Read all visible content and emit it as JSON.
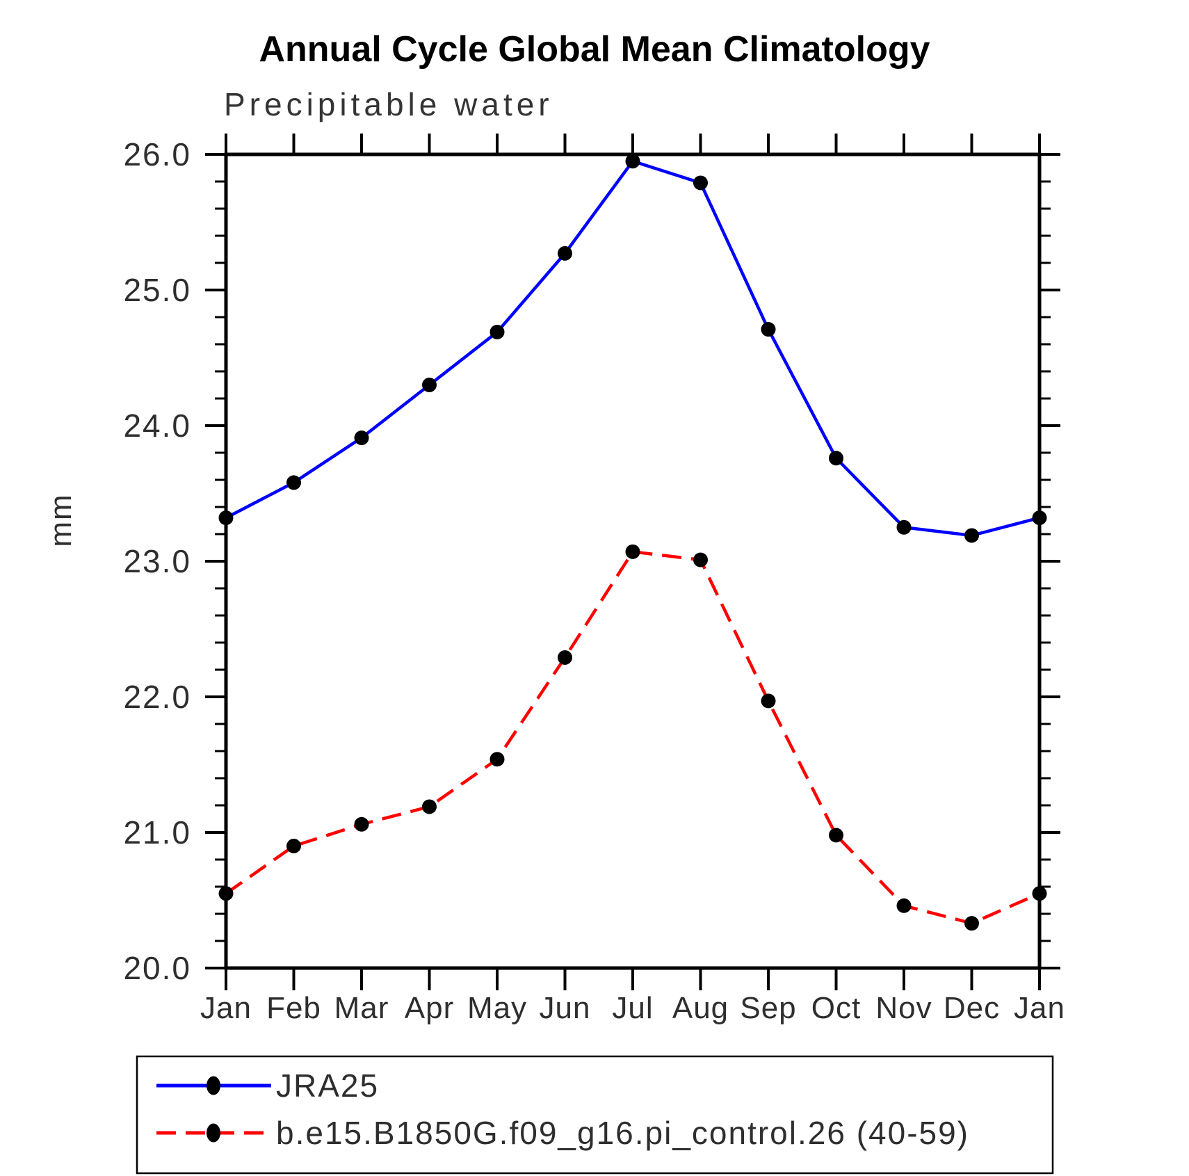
{
  "chart_data": {
    "type": "line",
    "title": "Annual Cycle Global Mean Climatology",
    "subtitle": "Precipitable water",
    "ylabel": "mm",
    "xlabel": "",
    "categories": [
      "Jan",
      "Feb",
      "Mar",
      "Apr",
      "May",
      "Jun",
      "Jul",
      "Aug",
      "Sep",
      "Oct",
      "Nov",
      "Dec",
      "Jan"
    ],
    "ylim": [
      20.0,
      26.0
    ],
    "ytick_step": 1.0,
    "yminor_step": 0.2,
    "ytick_labels": [
      "20.0",
      "21.0",
      "22.0",
      "23.0",
      "24.0",
      "25.0",
      "26.0"
    ],
    "grid": false,
    "legend_position": "bottom-left",
    "axis_color": "#000000",
    "marker_color": "#000000",
    "series": [
      {
        "name": "JRA25",
        "color": "#0000ff",
        "line_style": "solid",
        "marker": "circle",
        "values": [
          23.32,
          23.58,
          23.91,
          24.3,
          24.69,
          25.27,
          25.95,
          25.79,
          24.71,
          23.76,
          23.25,
          23.19,
          23.32
        ]
      },
      {
        "name": "b.e15.B1850G.f09_g16.pi_control.26 (40-59)",
        "color": "#ff0000",
        "line_style": "dashed",
        "marker": "circle",
        "values": [
          20.55,
          20.9,
          21.06,
          21.19,
          21.54,
          22.29,
          23.07,
          23.01,
          21.97,
          20.98,
          20.46,
          20.33,
          20.55
        ]
      }
    ]
  }
}
